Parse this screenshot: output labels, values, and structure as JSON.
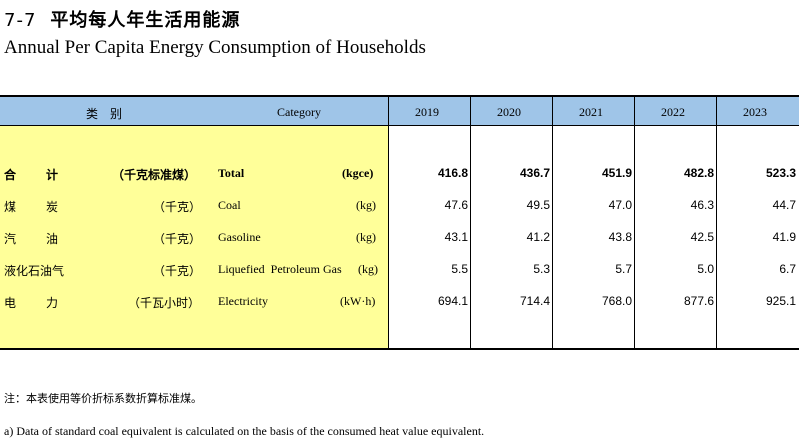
{
  "title": {
    "number": "7-7",
    "cn": "平均每人年生活用能源",
    "en": "Annual Per Capita Energy Consumption of Households"
  },
  "header": {
    "category_cn": "类　别",
    "category_en": "Category",
    "years": [
      "2019",
      "2020",
      "2021",
      "2022",
      "2023"
    ]
  },
  "rows": [
    {
      "cn": "合　　计",
      "unit_cn": "（千克标准煤）",
      "en": "Total",
      "unit_en": "(kgce)",
      "values": [
        "416.8",
        "436.7",
        "451.9",
        "482.8",
        "523.3"
      ],
      "bold": true
    },
    {
      "cn": "煤　　炭",
      "unit_cn": "（千克）",
      "en": "Coal",
      "unit_en": "(kg)",
      "values": [
        "47.6",
        "49.5",
        "47.0",
        "46.3",
        "44.7"
      ],
      "bold": false
    },
    {
      "cn": "汽　　油",
      "unit_cn": "（千克）",
      "en": "Gasoline",
      "unit_en": "(kg)",
      "values": [
        "43.1",
        "41.2",
        "43.8",
        "42.5",
        "41.9"
      ],
      "bold": false
    },
    {
      "cn": "液化石油气",
      "unit_cn": "（千克）",
      "en": "Liquefied  Petroleum Gas",
      "unit_en": "(kg)",
      "values": [
        "5.5",
        "5.3",
        "5.7",
        "5.0",
        "6.7"
      ],
      "bold": false
    },
    {
      "cn": "电　　力",
      "unit_cn": "（千瓦小时）",
      "en": "Electricity",
      "unit_en": "(kW·h)",
      "values": [
        "694.1",
        "714.4",
        "768.0",
        "877.6",
        "925.1"
      ],
      "bold": false
    }
  ],
  "notes": {
    "cn": "注：本表使用等价折标系数折算标准煤。",
    "en": "a) Data of standard coal equivalent is calculated on the basis of the consumed heat value equivalent."
  }
}
